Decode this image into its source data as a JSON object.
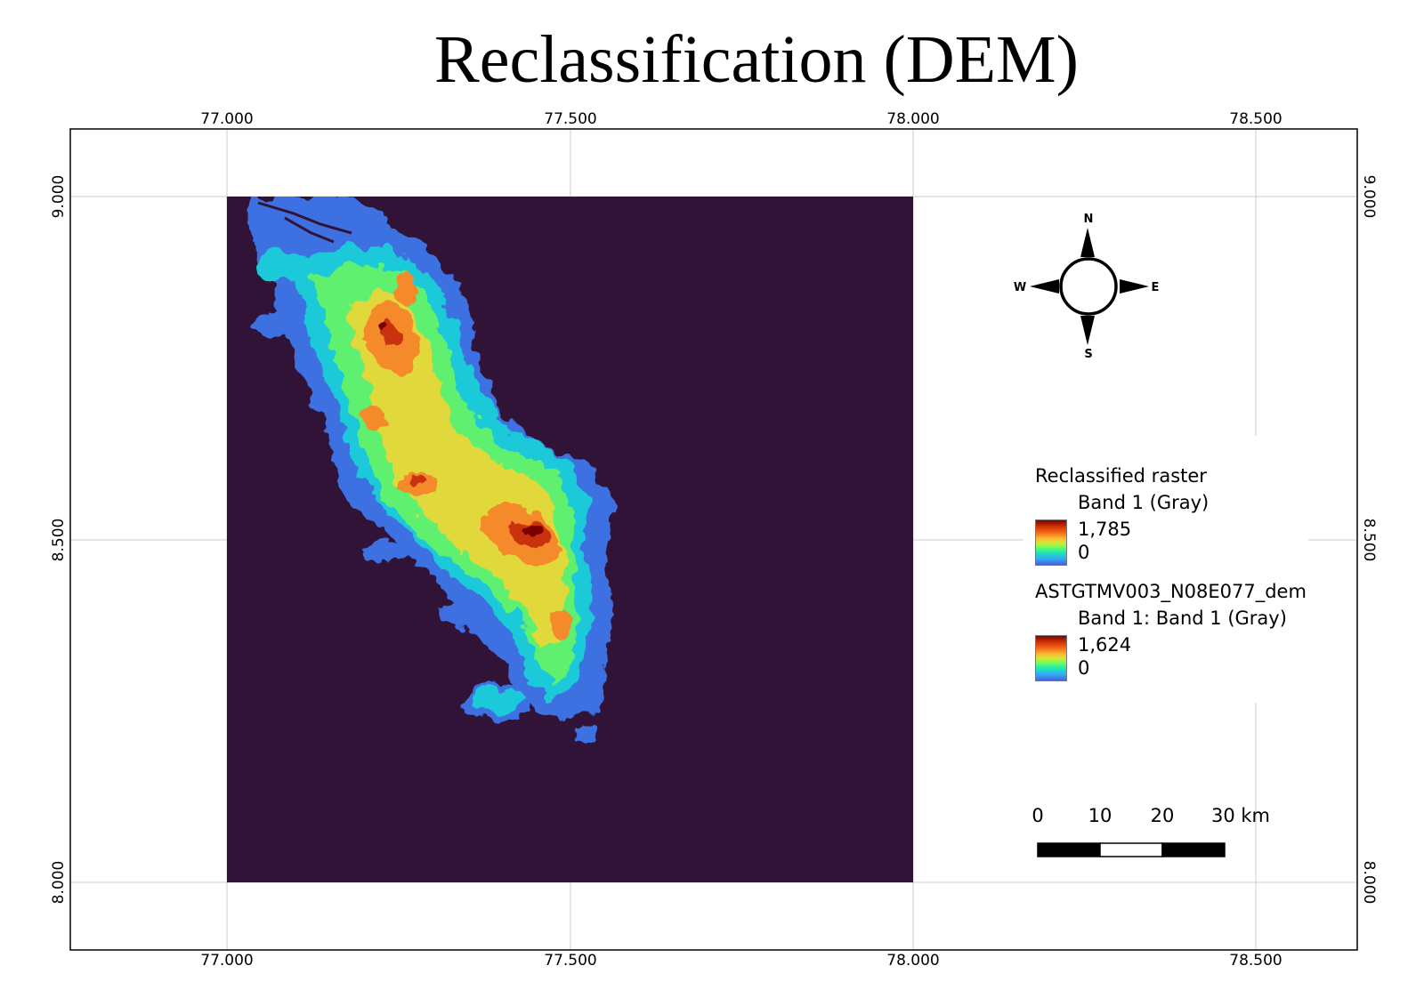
{
  "title": "Reclassification (DEM)",
  "axes": {
    "x_ticks": [
      "77.000",
      "77.500",
      "78.000",
      "78.500"
    ],
    "y_ticks": [
      "9.000",
      "8.500",
      "8.000"
    ]
  },
  "compass": {
    "n": "N",
    "s": "S",
    "e": "E",
    "w": "W"
  },
  "legend": {
    "layers": [
      {
        "title": "Reclassified raster",
        "band": "Band 1 (Gray)",
        "max": "1,785",
        "min": "0"
      },
      {
        "title": "ASTGTMV003_N08E077_dem",
        "band": "Band 1: Band 1 (Gray)",
        "max": "1,624",
        "min": "0"
      }
    ]
  },
  "scale_bar": {
    "labels": [
      "0",
      "10",
      "20",
      "30 km"
    ]
  },
  "colors": {
    "raster_background": "#301336",
    "ramp": [
      "#4662d7",
      "#35abf8",
      "#1ae4b6",
      "#62fc6b",
      "#c7ec35",
      "#f9c037",
      "#f46d18",
      "#d23105",
      "#7a0403"
    ]
  }
}
